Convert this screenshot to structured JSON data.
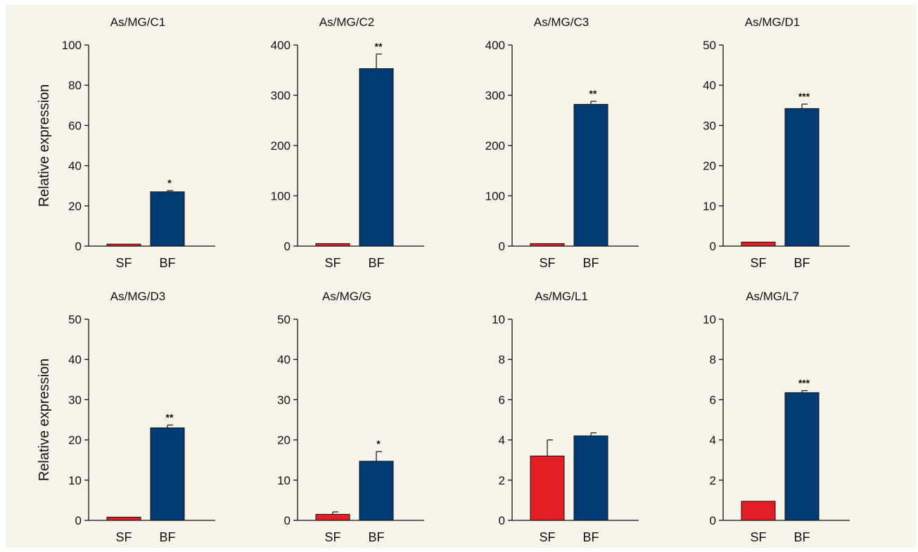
{
  "colors": {
    "SF": "#e31e24",
    "BF": "#003b75",
    "background": "#f7f4ea"
  },
  "y_axis_label": "Relative expression",
  "chart_data": [
    {
      "type": "bar",
      "title": "As/MG/C1",
      "categories": [
        "SF",
        "BF"
      ],
      "values": [
        1,
        27
      ],
      "errors": [
        0,
        0.6
      ],
      "significance": [
        "",
        "*"
      ],
      "ylim": [
        0,
        100
      ],
      "yticks": [
        0,
        20,
        40,
        60,
        80,
        100
      ],
      "ylabel": "Relative expression"
    },
    {
      "type": "bar",
      "title": "As/MG/C2",
      "categories": [
        "SF",
        "BF"
      ],
      "values": [
        5,
        353
      ],
      "errors": [
        0,
        29
      ],
      "significance": [
        "",
        "**"
      ],
      "ylim": [
        0,
        400
      ],
      "yticks": [
        0,
        100,
        200,
        300,
        400
      ],
      "ylabel": ""
    },
    {
      "type": "bar",
      "title": "As/MG/C3",
      "categories": [
        "SF",
        "BF"
      ],
      "values": [
        5,
        282
      ],
      "errors": [
        0,
        6
      ],
      "significance": [
        "",
        "**"
      ],
      "ylim": [
        0,
        400
      ],
      "yticks": [
        0,
        100,
        200,
        300,
        400
      ],
      "ylabel": ""
    },
    {
      "type": "bar",
      "title": "As/MG/D1",
      "categories": [
        "SF",
        "BF"
      ],
      "values": [
        1,
        34.2
      ],
      "errors": [
        0,
        1.1
      ],
      "significance": [
        "",
        "***"
      ],
      "ylim": [
        0,
        50
      ],
      "yticks": [
        0,
        10,
        20,
        30,
        40,
        50
      ],
      "ylabel": ""
    },
    {
      "type": "bar",
      "title": "As/MG/D3",
      "categories": [
        "SF",
        "BF"
      ],
      "values": [
        0.8,
        23
      ],
      "errors": [
        0,
        0.7
      ],
      "significance": [
        "",
        "**"
      ],
      "ylim": [
        0,
        50
      ],
      "yticks": [
        0,
        10,
        20,
        30,
        40,
        50
      ],
      "ylabel": "Relative expression"
    },
    {
      "type": "bar",
      "title": "As/MG/G",
      "categories": [
        "SF",
        "BF"
      ],
      "values": [
        1.5,
        14.7
      ],
      "errors": [
        0.6,
        2.4
      ],
      "significance": [
        "",
        "*"
      ],
      "ylim": [
        0,
        50
      ],
      "yticks": [
        0,
        10,
        20,
        30,
        40,
        50
      ],
      "ylabel": ""
    },
    {
      "type": "bar",
      "title": "As/MG/L1",
      "categories": [
        "SF",
        "BF"
      ],
      "values": [
        3.2,
        4.2
      ],
      "errors": [
        0.8,
        0.15
      ],
      "significance": [
        "",
        ""
      ],
      "ylim": [
        0,
        10
      ],
      "yticks": [
        0,
        2,
        4,
        6,
        8,
        10
      ],
      "ylabel": ""
    },
    {
      "type": "bar",
      "title": "As/MG/L7",
      "categories": [
        "SF",
        "BF"
      ],
      "values": [
        0.95,
        6.35
      ],
      "errors": [
        0,
        0.1
      ],
      "significance": [
        "",
        "***"
      ],
      "ylim": [
        0,
        10
      ],
      "yticks": [
        0,
        2,
        4,
        6,
        8,
        10
      ],
      "ylabel": ""
    }
  ]
}
